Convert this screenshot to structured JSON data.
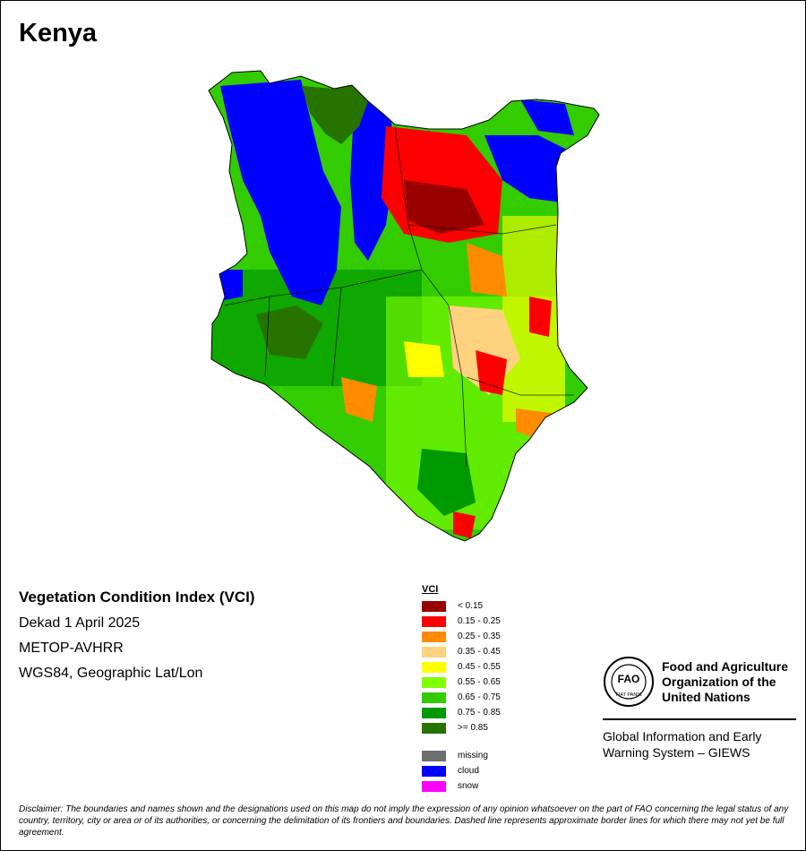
{
  "map": {
    "country": "Kenya",
    "index_name": "Vegetation Condition Index (VCI)",
    "period": "Dekad 1 April 2025",
    "sensor": "METOP-AVHRR",
    "projection": "WGS84, Geographic Lat/Lon"
  },
  "legend": {
    "title": "VCI",
    "classes": [
      {
        "label": "< 0.15",
        "color": "#990000"
      },
      {
        "label": "0.15 - 0.25",
        "color": "#ff0000"
      },
      {
        "label": "0.25 - 0.35",
        "color": "#ff8c00"
      },
      {
        "label": "0.35 - 0.45",
        "color": "#ffd27f"
      },
      {
        "label": "0.45 - 0.55",
        "color": "#ffff00"
      },
      {
        "label": "0.55 - 0.65",
        "color": "#80ff00"
      },
      {
        "label": "0.65 - 0.75",
        "color": "#33cc00"
      },
      {
        "label": "0.75 - 0.85",
        "color": "#009900"
      },
      {
        "label": ">= 0.85",
        "color": "#267300"
      }
    ],
    "special": [
      {
        "label": "missing",
        "color": "#6e6e6e"
      },
      {
        "label": "cloud",
        "color": "#0000ff"
      },
      {
        "label": "snow",
        "color": "#ff00ff"
      }
    ]
  },
  "org": {
    "logo_text": "FAO",
    "logo_ring_text": "FIAT PANIS",
    "name_lines": [
      "Food and Agriculture",
      "Organization of the",
      "United Nations"
    ],
    "system_lines": [
      "Global Information and Early",
      "Warning System – GIEWS"
    ]
  },
  "disclaimer": "Disclaimer: The boundaries and names shown and the designations used on this map do not imply the expression of any opinion whatsoever on the part of FAO concerning the legal status of any country, territory, city or area or of its authorities, or concerning the delimitation of its frontiers and boundaries. Dashed line represents approximate border lines for which there may not yet be full agreement."
}
